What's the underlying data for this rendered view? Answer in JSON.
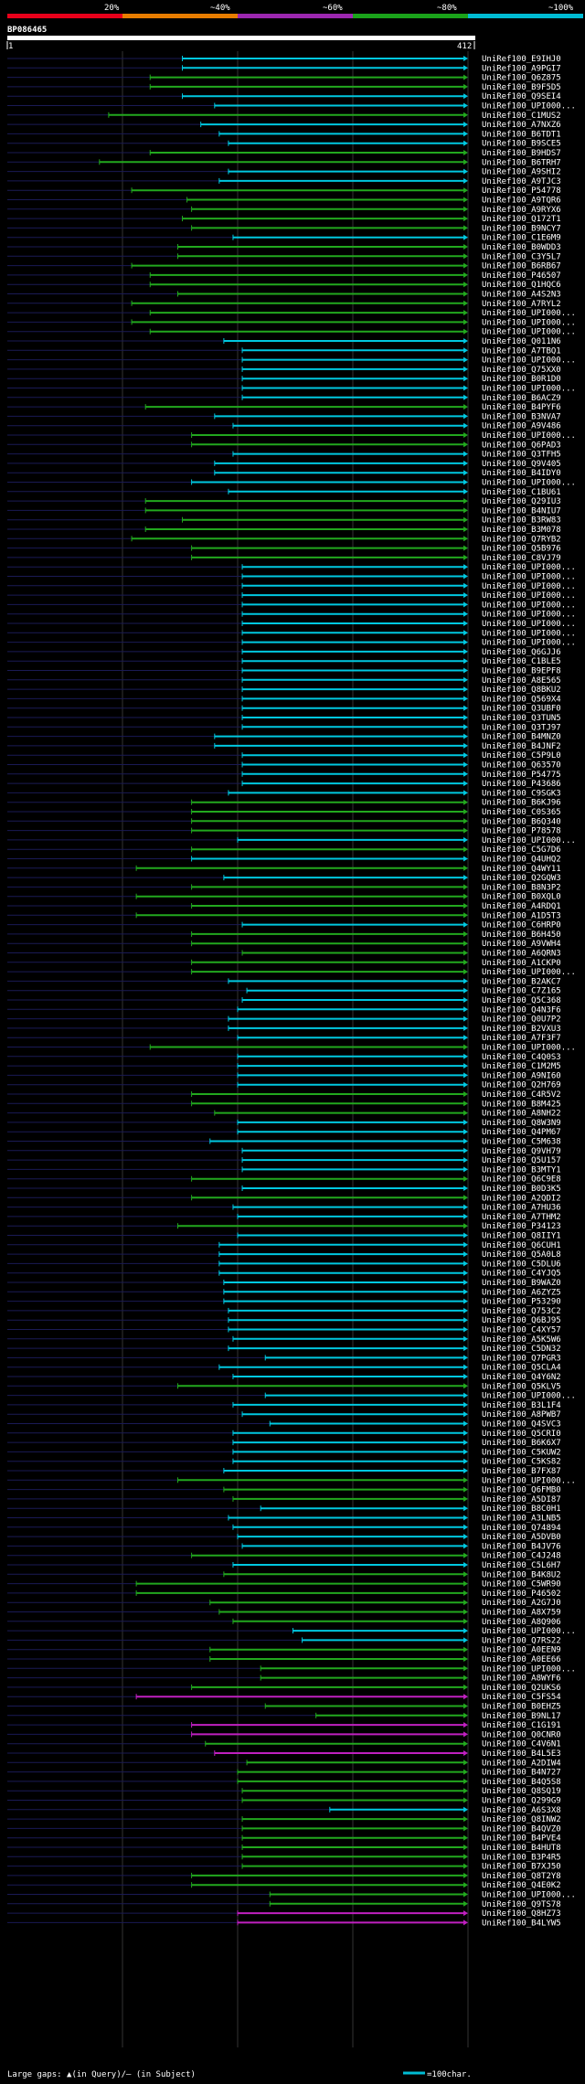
{
  "legend": {
    "pct_labels": [
      "20%",
      "~40%",
      "~60%",
      "~80%",
      "~100%"
    ],
    "colors": [
      "#e8001a",
      "#e87d00",
      "#9c27b0",
      "#1aa31a",
      "#00bcd4"
    ]
  },
  "query": {
    "name": "BP086465",
    "start": "1",
    "end": "412"
  },
  "footer": {
    "gaps_text": "Large gaps: ▲(in Query)/– (in Subject)",
    "scale_text": "=100char."
  },
  "hits": [
    {
      "name": "UniRef100_E9IHJ0",
      "start": 0.38,
      "color": "cyan"
    },
    {
      "name": "UniRef100_A9PGI7",
      "start": 0.38,
      "color": "cyan"
    },
    {
      "name": "UniRef100_Q6Z875",
      "start": 0.31,
      "color": "green"
    },
    {
      "name": "UniRef100_B9F5D5",
      "start": 0.31,
      "color": "green"
    },
    {
      "name": "UniRef100_Q9SEI4",
      "start": 0.38,
      "color": "cyan"
    },
    {
      "name": "UniRef100_UPI000...",
      "start": 0.45,
      "color": "cyan"
    },
    {
      "name": "UniRef100_C1MUS2",
      "start": 0.22,
      "color": "green"
    },
    {
      "name": "UniRef100_A7NXZ6",
      "start": 0.42,
      "color": "cyan"
    },
    {
      "name": "UniRef100_B6TDT1",
      "start": 0.46,
      "color": "cyan"
    },
    {
      "name": "UniRef100_B9SCE5",
      "start": 0.48,
      "color": "cyan"
    },
    {
      "name": "UniRef100_B9HDS7",
      "start": 0.31,
      "color": "green"
    },
    {
      "name": "UniRef100_B6TRH7",
      "start": 0.2,
      "color": "green"
    },
    {
      "name": "UniRef100_A9SHI2",
      "start": 0.48,
      "color": "cyan"
    },
    {
      "name": "UniRef100_A9TJC3",
      "start": 0.46,
      "color": "cyan"
    },
    {
      "name": "UniRef100_P54778",
      "start": 0.27,
      "color": "green"
    },
    {
      "name": "UniRef100_A9TQR6",
      "start": 0.39,
      "color": "green"
    },
    {
      "name": "UniRef100_A9RYX6",
      "start": 0.4,
      "color": "green"
    },
    {
      "name": "UniRef100_Q172T1",
      "start": 0.38,
      "color": "green"
    },
    {
      "name": "UniRef100_B9NCY7",
      "start": 0.4,
      "color": "green"
    },
    {
      "name": "UniRef100_C1E6M9",
      "start": 0.49,
      "color": "cyan"
    },
    {
      "name": "UniRef100_B0WDD3",
      "start": 0.37,
      "color": "green"
    },
    {
      "name": "UniRef100_C3Y5L7",
      "start": 0.37,
      "color": "green"
    },
    {
      "name": "UniRef100_B6RB67",
      "start": 0.27,
      "color": "green"
    },
    {
      "name": "UniRef100_P46507",
      "start": 0.31,
      "color": "green"
    },
    {
      "name": "UniRef100_Q1HQC6",
      "start": 0.31,
      "color": "green"
    },
    {
      "name": "UniRef100_A4S2N3",
      "start": 0.37,
      "color": "green"
    },
    {
      "name": "UniRef100_A7RYL2",
      "start": 0.27,
      "color": "green"
    },
    {
      "name": "UniRef100_UPI000...",
      "start": 0.31,
      "color": "green"
    },
    {
      "name": "UniRef100_UPI000...",
      "start": 0.27,
      "color": "green"
    },
    {
      "name": "UniRef100_UPI000...",
      "start": 0.31,
      "color": "green"
    },
    {
      "name": "UniRef100_Q011N6",
      "start": 0.47,
      "color": "cyan"
    },
    {
      "name": "UniRef100_A7TBQ1",
      "start": 0.51,
      "color": "cyan"
    },
    {
      "name": "UniRef100_UPI000...",
      "start": 0.51,
      "color": "cyan"
    },
    {
      "name": "UniRef100_Q75XX0",
      "start": 0.51,
      "color": "cyan"
    },
    {
      "name": "UniRef100_B0R1D0",
      "start": 0.51,
      "color": "cyan"
    },
    {
      "name": "UniRef100_UPI000...",
      "start": 0.51,
      "color": "cyan"
    },
    {
      "name": "UniRef100_B6ACZ9",
      "start": 0.51,
      "color": "cyan"
    },
    {
      "name": "UniRef100_B4PYF6",
      "start": 0.3,
      "color": "green"
    },
    {
      "name": "UniRef100_B3NVA7",
      "start": 0.45,
      "color": "cyan"
    },
    {
      "name": "UniRef100_A9V486",
      "start": 0.49,
      "color": "cyan"
    },
    {
      "name": "UniRef100_UPI000...",
      "start": 0.4,
      "color": "green"
    },
    {
      "name": "UniRef100_Q6PAD3",
      "start": 0.4,
      "color": "green"
    },
    {
      "name": "UniRef100_Q3TFH5",
      "start": 0.49,
      "color": "cyan"
    },
    {
      "name": "UniRef100_Q9V405",
      "start": 0.45,
      "color": "cyan"
    },
    {
      "name": "UniRef100_B4IDY0",
      "start": 0.45,
      "color": "cyan"
    },
    {
      "name": "UniRef100_UPI000...",
      "start": 0.4,
      "color": "cyan"
    },
    {
      "name": "UniRef100_C1BU61",
      "start": 0.48,
      "color": "cyan"
    },
    {
      "name": "UniRef100_Q29IU3",
      "start": 0.3,
      "color": "green"
    },
    {
      "name": "UniRef100_B4NIU7",
      "start": 0.3,
      "color": "green"
    },
    {
      "name": "UniRef100_B3RW83",
      "start": 0.38,
      "color": "green"
    },
    {
      "name": "UniRef100_B3M078",
      "start": 0.3,
      "color": "green"
    },
    {
      "name": "UniRef100_Q7RYB2",
      "start": 0.27,
      "color": "green"
    },
    {
      "name": "UniRef100_Q5B976",
      "start": 0.4,
      "color": "green"
    },
    {
      "name": "UniRef100_C8VJ79",
      "start": 0.4,
      "color": "green"
    },
    {
      "name": "UniRef100_UPI000...",
      "start": 0.51,
      "color": "cyan"
    },
    {
      "name": "UniRef100_UPI000...",
      "start": 0.51,
      "color": "cyan"
    },
    {
      "name": "UniRef100_UPI000...",
      "start": 0.51,
      "color": "cyan"
    },
    {
      "name": "UniRef100_UPI000...",
      "start": 0.51,
      "color": "cyan"
    },
    {
      "name": "UniRef100_UPI000...",
      "start": 0.51,
      "color": "cyan"
    },
    {
      "name": "UniRef100_UPI000...",
      "start": 0.51,
      "color": "cyan"
    },
    {
      "name": "UniRef100_UPI000...",
      "start": 0.51,
      "color": "cyan"
    },
    {
      "name": "UniRef100_UPI000...",
      "start": 0.51,
      "color": "cyan"
    },
    {
      "name": "UniRef100_UPI000...",
      "start": 0.51,
      "color": "cyan"
    },
    {
      "name": "UniRef100_Q6GJJ6",
      "start": 0.51,
      "color": "cyan"
    },
    {
      "name": "UniRef100_C1BLE5",
      "start": 0.51,
      "color": "cyan"
    },
    {
      "name": "UniRef100_B9EPF8",
      "start": 0.51,
      "color": "cyan"
    },
    {
      "name": "UniRef100_A8E565",
      "start": 0.51,
      "color": "cyan"
    },
    {
      "name": "UniRef100_Q8BKU2",
      "start": 0.51,
      "color": "cyan"
    },
    {
      "name": "UniRef100_Q569X4",
      "start": 0.51,
      "color": "cyan"
    },
    {
      "name": "UniRef100_Q3UBF0",
      "start": 0.51,
      "color": "cyan"
    },
    {
      "name": "UniRef100_Q3TUN5",
      "start": 0.51,
      "color": "cyan"
    },
    {
      "name": "UniRef100_Q3TJ97",
      "start": 0.51,
      "color": "cyan"
    },
    {
      "name": "UniRef100_B4MNZ0",
      "start": 0.45,
      "color": "cyan"
    },
    {
      "name": "UniRef100_B4JNF2",
      "start": 0.45,
      "color": "cyan"
    },
    {
      "name": "UniRef100_C5P9L0",
      "start": 0.51,
      "color": "cyan"
    },
    {
      "name": "UniRef100_Q63570",
      "start": 0.51,
      "color": "cyan"
    },
    {
      "name": "UniRef100_P54775",
      "start": 0.51,
      "color": "cyan"
    },
    {
      "name": "UniRef100_P43686",
      "start": 0.51,
      "color": "cyan"
    },
    {
      "name": "UniRef100_C9SGK3",
      "start": 0.48,
      "color": "cyan"
    },
    {
      "name": "UniRef100_B6KJ96",
      "start": 0.4,
      "color": "green"
    },
    {
      "name": "UniRef100_C0S365",
      "start": 0.4,
      "color": "green"
    },
    {
      "name": "UniRef100_B6Q340",
      "start": 0.4,
      "color": "green"
    },
    {
      "name": "UniRef100_P78578",
      "start": 0.4,
      "color": "green"
    },
    {
      "name": "UniRef100_UPI000...",
      "start": 0.5,
      "color": "cyan"
    },
    {
      "name": "UniRef100_C5G7D6",
      "start": 0.4,
      "color": "green"
    },
    {
      "name": "UniRef100_Q4UHQ2",
      "start": 0.4,
      "color": "cyan"
    },
    {
      "name": "UniRef100_Q4WY11",
      "start": 0.28,
      "color": "green"
    },
    {
      "name": "UniRef100_Q2GQW3",
      "start": 0.47,
      "color": "cyan"
    },
    {
      "name": "UniRef100_B8N3P2",
      "start": 0.4,
      "color": "green"
    },
    {
      "name": "UniRef100_B0XQL0",
      "start": 0.28,
      "color": "green"
    },
    {
      "name": "UniRef100_A4RDQ1",
      "start": 0.4,
      "color": "green"
    },
    {
      "name": "UniRef100_A1D5T3",
      "start": 0.28,
      "color": "green"
    },
    {
      "name": "UniRef100_C6HRP0",
      "start": 0.51,
      "color": "cyan"
    },
    {
      "name": "UniRef100_B6H450",
      "start": 0.4,
      "color": "green"
    },
    {
      "name": "UniRef100_A9VWH4",
      "start": 0.4,
      "color": "green"
    },
    {
      "name": "UniRef100_A6QRN3",
      "start": 0.51,
      "color": "green"
    },
    {
      "name": "UniRef100_A1CKP0",
      "start": 0.4,
      "color": "green"
    },
    {
      "name": "UniRef100_UPI000...",
      "start": 0.4,
      "color": "green"
    },
    {
      "name": "UniRef100_B2AKC7",
      "start": 0.48,
      "color": "cyan"
    },
    {
      "name": "UniRef100_C7Z165",
      "start": 0.52,
      "color": "cyan"
    },
    {
      "name": "UniRef100_Q5C368",
      "start": 0.51,
      "color": "cyan"
    },
    {
      "name": "UniRef100_Q4N3F6",
      "start": 0.5,
      "color": "cyan"
    },
    {
      "name": "UniRef100_Q0U7P2",
      "start": 0.48,
      "color": "cyan"
    },
    {
      "name": "UniRef100_B2VXU3",
      "start": 0.48,
      "color": "cyan"
    },
    {
      "name": "UniRef100_A7F3F7",
      "start": 0.5,
      "color": "cyan"
    },
    {
      "name": "UniRef100_UPI000...",
      "start": 0.31,
      "color": "green"
    },
    {
      "name": "UniRef100_C4Q0S3",
      "start": 0.5,
      "color": "cyan"
    },
    {
      "name": "UniRef100_C1M2M5",
      "start": 0.5,
      "color": "cyan"
    },
    {
      "name": "UniRef100_A9NI60",
      "start": 0.5,
      "color": "cyan"
    },
    {
      "name": "UniRef100_Q2H769",
      "start": 0.5,
      "color": "cyan"
    },
    {
      "name": "UniRef100_C4R5V2",
      "start": 0.4,
      "color": "green"
    },
    {
      "name": "UniRef100_B8M425",
      "start": 0.4,
      "color": "green"
    },
    {
      "name": "UniRef100_A8NH22",
      "start": 0.45,
      "color": "green"
    },
    {
      "name": "UniRef100_Q8W3N9",
      "start": 0.5,
      "color": "cyan"
    },
    {
      "name": "UniRef100_Q4PM67",
      "start": 0.5,
      "color": "cyan"
    },
    {
      "name": "UniRef100_C5M638",
      "start": 0.44,
      "color": "cyan"
    },
    {
      "name": "UniRef100_Q9VH79",
      "start": 0.51,
      "color": "cyan"
    },
    {
      "name": "UniRef100_Q5U157",
      "start": 0.51,
      "color": "cyan"
    },
    {
      "name": "UniRef100_B3MTY1",
      "start": 0.51,
      "color": "cyan"
    },
    {
      "name": "UniRef100_Q6C9E8",
      "start": 0.4,
      "color": "green"
    },
    {
      "name": "UniRef100_B0D3K5",
      "start": 0.51,
      "color": "cyan"
    },
    {
      "name": "UniRef100_A2QDI2",
      "start": 0.4,
      "color": "green"
    },
    {
      "name": "UniRef100_A7HU36",
      "start": 0.49,
      "color": "cyan"
    },
    {
      "name": "UniRef100_A7THM2",
      "start": 0.5,
      "color": "cyan"
    },
    {
      "name": "UniRef100_P34123",
      "start": 0.37,
      "color": "green"
    },
    {
      "name": "UniRef100_Q8IIY1",
      "start": 0.5,
      "color": "cyan"
    },
    {
      "name": "UniRef100_Q6CUH1",
      "start": 0.46,
      "color": "cyan"
    },
    {
      "name": "UniRef100_Q5A0L8",
      "start": 0.46,
      "color": "cyan"
    },
    {
      "name": "UniRef100_C5DLU6",
      "start": 0.46,
      "color": "cyan"
    },
    {
      "name": "UniRef100_C4YJQ5",
      "start": 0.46,
      "color": "cyan"
    },
    {
      "name": "UniRef100_B9WAZ0",
      "start": 0.47,
      "color": "cyan"
    },
    {
      "name": "UniRef100_A6ZYZ5",
      "start": 0.47,
      "color": "cyan"
    },
    {
      "name": "UniRef100_P53290",
      "start": 0.47,
      "color": "cyan"
    },
    {
      "name": "UniRef100_Q753C2",
      "start": 0.48,
      "color": "cyan"
    },
    {
      "name": "UniRef100_Q6BJ95",
      "start": 0.48,
      "color": "cyan"
    },
    {
      "name": "UniRef100_C4XY57",
      "start": 0.48,
      "color": "cyan"
    },
    {
      "name": "UniRef100_A5K5W6",
      "start": 0.49,
      "color": "cyan"
    },
    {
      "name": "UniRef100_C5DN32",
      "start": 0.48,
      "color": "cyan"
    },
    {
      "name": "UniRef100_Q7PGR3",
      "start": 0.56,
      "color": "cyan"
    },
    {
      "name": "UniRef100_Q5CLA4",
      "start": 0.46,
      "color": "cyan"
    },
    {
      "name": "UniRef100_Q4Y6N2",
      "start": 0.49,
      "color": "cyan"
    },
    {
      "name": "UniRef100_Q5KLV5",
      "start": 0.37,
      "color": "green"
    },
    {
      "name": "UniRef100_UPI000...",
      "start": 0.56,
      "color": "cyan"
    },
    {
      "name": "UniRef100_B3L1F4",
      "start": 0.49,
      "color": "cyan"
    },
    {
      "name": "UniRef100_A8PWB7",
      "start": 0.51,
      "color": "cyan"
    },
    {
      "name": "UniRef100_Q4SVC3",
      "start": 0.57,
      "color": "cyan"
    },
    {
      "name": "UniRef100_Q5CRI0",
      "start": 0.49,
      "color": "cyan"
    },
    {
      "name": "UniRef100_B6K6X7",
      "start": 0.49,
      "color": "cyan"
    },
    {
      "name": "UniRef100_C5KUW2",
      "start": 0.49,
      "color": "cyan"
    },
    {
      "name": "UniRef100_C5KS82",
      "start": 0.49,
      "color": "cyan"
    },
    {
      "name": "UniRef100_B7FX87",
      "start": 0.47,
      "color": "cyan"
    },
    {
      "name": "UniRef100_UPI000...",
      "start": 0.37,
      "color": "green"
    },
    {
      "name": "UniRef100_Q6FMB0",
      "start": 0.47,
      "color": "green"
    },
    {
      "name": "UniRef100_A5DI87",
      "start": 0.49,
      "color": "green"
    },
    {
      "name": "UniRef100_B8C0H1",
      "start": 0.55,
      "color": "cyan"
    },
    {
      "name": "UniRef100_A3LNB5",
      "start": 0.48,
      "color": "cyan"
    },
    {
      "name": "UniRef100_Q74894",
      "start": 0.49,
      "color": "cyan"
    },
    {
      "name": "UniRef100_A5DVB0",
      "start": 0.5,
      "color": "cyan"
    },
    {
      "name": "UniRef100_B4JV76",
      "start": 0.51,
      "color": "cyan"
    },
    {
      "name": "UniRef100_C4J248",
      "start": 0.4,
      "color": "green"
    },
    {
      "name": "UniRef100_C5L6H7",
      "start": 0.49,
      "color": "cyan"
    },
    {
      "name": "UniRef100_B4K8U2",
      "start": 0.47,
      "color": "green"
    },
    {
      "name": "UniRef100_C5WR90",
      "start": 0.28,
      "color": "green"
    },
    {
      "name": "UniRef100_P46502",
      "start": 0.28,
      "color": "green"
    },
    {
      "name": "UniRef100_A2G7J0",
      "start": 0.44,
      "color": "green"
    },
    {
      "name": "UniRef100_A8X759",
      "start": 0.46,
      "color": "green"
    },
    {
      "name": "UniRef100_A8Q906",
      "start": 0.49,
      "color": "green"
    },
    {
      "name": "UniRef100_UPI000...",
      "start": 0.62,
      "color": "cyan"
    },
    {
      "name": "UniRef100_Q7RS22",
      "start": 0.64,
      "color": "cyan"
    },
    {
      "name": "UniRef100_A0EEN9",
      "start": 0.44,
      "color": "green"
    },
    {
      "name": "UniRef100_A0EE66",
      "start": 0.44,
      "color": "green"
    },
    {
      "name": "UniRef100_UPI000...",
      "start": 0.55,
      "color": "green"
    },
    {
      "name": "UniRef100_A8WYF6",
      "start": 0.55,
      "color": "green"
    },
    {
      "name": "UniRef100_Q2UKS6",
      "start": 0.4,
      "color": "green"
    },
    {
      "name": "UniRef100_C5FS54",
      "start": 0.28,
      "color": "magenta"
    },
    {
      "name": "UniRef100_B0EHZ5",
      "start": 0.56,
      "color": "green"
    },
    {
      "name": "UniRef100_B9NL17",
      "start": 0.67,
      "color": "green"
    },
    {
      "name": "UniRef100_C1G191",
      "start": 0.4,
      "color": "magenta"
    },
    {
      "name": "UniRef100_Q0CNR0",
      "start": 0.4,
      "color": "magenta"
    },
    {
      "name": "UniRef100_C4V6N1",
      "start": 0.43,
      "color": "green"
    },
    {
      "name": "UniRef100_B4L5E3",
      "start": 0.45,
      "color": "magenta"
    },
    {
      "name": "UniRef100_A2DIW4",
      "start": 0.52,
      "color": "green"
    },
    {
      "name": "UniRef100_B4N727",
      "start": 0.5,
      "color": "green"
    },
    {
      "name": "UniRef100_B4Q5S8",
      "start": 0.5,
      "color": "green"
    },
    {
      "name": "UniRef100_Q8SQ19",
      "start": 0.51,
      "color": "green"
    },
    {
      "name": "UniRef100_Q299G9",
      "start": 0.51,
      "color": "green"
    },
    {
      "name": "UniRef100_A6S3X8",
      "start": 0.7,
      "color": "cyan"
    },
    {
      "name": "UniRef100_Q8INW2",
      "start": 0.51,
      "color": "green"
    },
    {
      "name": "UniRef100_B4QVZ0",
      "start": 0.51,
      "color": "green"
    },
    {
      "name": "UniRef100_B4PVE4",
      "start": 0.51,
      "color": "green"
    },
    {
      "name": "UniRef100_B4HUT8",
      "start": 0.51,
      "color": "green"
    },
    {
      "name": "UniRef100_B3P4R5",
      "start": 0.51,
      "color": "green"
    },
    {
      "name": "UniRef100_B7XJ50",
      "start": 0.51,
      "color": "green"
    },
    {
      "name": "UniRef100_Q8T2Y8",
      "start": 0.4,
      "color": "green"
    },
    {
      "name": "UniRef100_Q4E0K2",
      "start": 0.4,
      "color": "green"
    },
    {
      "name": "UniRef100_UPI000...",
      "start": 0.57,
      "color": "green"
    },
    {
      "name": "UniRef100_Q9TS78",
      "start": 0.57,
      "color": "green"
    },
    {
      "name": "UniRef100_Q8HZ73",
      "start": 0.5,
      "color": "magenta"
    },
    {
      "name": "UniRef100_B4LYW5",
      "start": 0.5,
      "color": "magenta"
    }
  ]
}
